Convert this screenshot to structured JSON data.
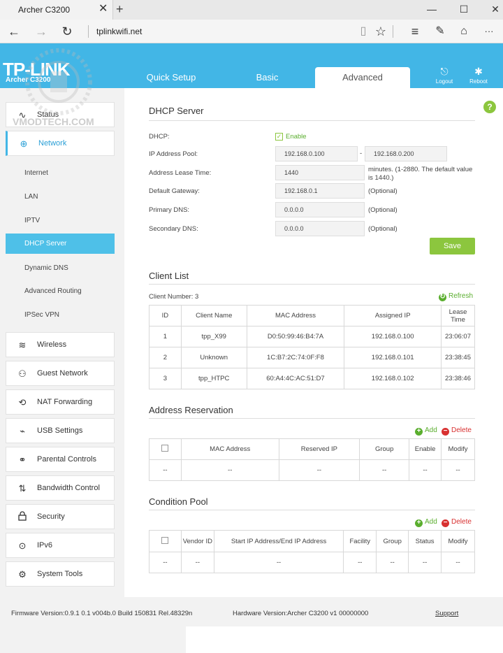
{
  "browser": {
    "tab_title": "Archer C3200",
    "tab_close": "✕",
    "new_tab": "+",
    "url": "tplinkwifi.net",
    "back": "←",
    "forward": "→",
    "refresh": "↻",
    "minimize": "—",
    "maximize": "☐",
    "close": "✕",
    "reading_view": "▯",
    "favorite": "☆",
    "hub": "≡",
    "notes": "✎",
    "share": "⌂",
    "more": "···"
  },
  "header": {
    "logo": "TP-LINK",
    "model": "Archer C3200",
    "tabs": [
      {
        "label": "Quick Setup"
      },
      {
        "label": "Basic"
      },
      {
        "label": "Advanced"
      }
    ],
    "logout_label": "Logout",
    "reboot_label": "Reboot",
    "accent": "#42b6e6"
  },
  "watermark": {
    "text": "VMODTECH.COM"
  },
  "sidebar": {
    "items": [
      {
        "label": "Status",
        "icon": "status-icon",
        "glyph": "∿"
      },
      {
        "label": "Network",
        "icon": "globe-icon",
        "glyph": "⊕"
      },
      {
        "label": "Wireless",
        "icon": "wireless-icon",
        "glyph": "≋"
      },
      {
        "label": "Guest Network",
        "icon": "guest-network-icon",
        "glyph": "⚇"
      },
      {
        "label": "NAT Forwarding",
        "icon": "nat-forwarding-icon",
        "glyph": "⟲"
      },
      {
        "label": "USB Settings",
        "icon": "usb-icon",
        "glyph": "⌁"
      },
      {
        "label": "Parental Controls",
        "icon": "parental-controls-icon",
        "glyph": "⚭"
      },
      {
        "label": "Bandwidth Control",
        "icon": "bandwidth-icon",
        "glyph": "⇅"
      },
      {
        "label": "Security",
        "icon": "lock-icon",
        "glyph": "🔒"
      },
      {
        "label": "IPv6",
        "icon": "ipv6-icon",
        "glyph": "⊙"
      },
      {
        "label": "System Tools",
        "icon": "gear-icon",
        "glyph": "⚙"
      }
    ],
    "network_sub": [
      {
        "label": "Internet"
      },
      {
        "label": "LAN"
      },
      {
        "label": "IPTV"
      },
      {
        "label": "DHCP Server"
      },
      {
        "label": "Dynamic DNS"
      },
      {
        "label": "Advanced Routing"
      },
      {
        "label": "IPSec VPN"
      }
    ]
  },
  "dhcp": {
    "title": "DHCP Server",
    "help": "?",
    "dhcp_label": "DHCP:",
    "enable_label": "Enable",
    "enable_check": "✓",
    "pool_label": "IP Address Pool:",
    "pool_start": "192.168.0.100",
    "pool_dash": "-",
    "pool_end": "192.168.0.200",
    "lease_label": "Address Lease Time:",
    "lease_value": "1440",
    "lease_note": "minutes. (1-2880. The default value is 1440.)",
    "gateway_label": "Default Gateway:",
    "gateway_value": "192.168.0.1",
    "primary_dns_label": "Primary DNS:",
    "primary_dns_value": "0.0.0.0",
    "secondary_dns_label": "Secondary DNS:",
    "secondary_dns_value": "0.0.0.0",
    "optional": "(Optional)",
    "save": "Save"
  },
  "client_list": {
    "title": "Client List",
    "count_label": "Client Number: 3",
    "refresh": "Refresh",
    "columns": [
      "ID",
      "Client Name",
      "MAC Address",
      "Assigned IP",
      "Lease Time"
    ],
    "rows": [
      [
        "1",
        "tpp_X99",
        "D0:50:99:46:B4:7A",
        "192.168.0.100",
        "23:06:07"
      ],
      [
        "2",
        "Unknown",
        "1C:B7:2C:74:0F:F8",
        "192.168.0.101",
        "23:38:45"
      ],
      [
        "3",
        "tpp_HTPC",
        "60:A4:4C:AC:51:D7",
        "192.168.0.102",
        "23:38:46"
      ]
    ]
  },
  "reservation": {
    "title": "Address Reservation",
    "add": "Add",
    "delete": "Delete",
    "columns": [
      "",
      "MAC Address",
      "Reserved IP",
      "Group",
      "Enable",
      "Modify"
    ],
    "row": [
      "--",
      "--",
      "--",
      "--",
      "--",
      "--"
    ]
  },
  "condition_pool": {
    "title": "Condition Pool",
    "add": "Add",
    "delete": "Delete",
    "columns": [
      "",
      "Vendor ID",
      "Start IP Address/End IP Address",
      "Facility",
      "Group",
      "Status",
      "Modify"
    ],
    "row": [
      "--",
      "--",
      "--",
      "--",
      "--",
      "--",
      "--"
    ]
  },
  "footer": {
    "firmware": "Firmware Version:0.9.1 0.1 v004b.0 Build 150831 Rel.48329n",
    "hardware": "Hardware Version:Archer C3200 v1 00000000",
    "support": "Support"
  }
}
